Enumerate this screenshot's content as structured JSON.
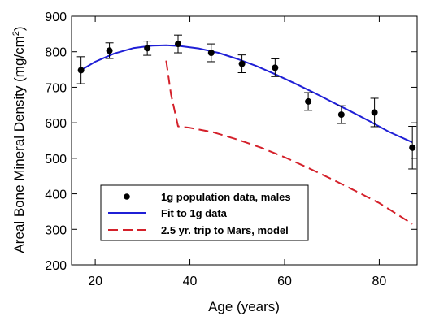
{
  "chart_data": {
    "type": "scatter",
    "xlabel": "Age (years)",
    "ylabel": "Areal Bone Mineral Density (mg/cm",
    "ylabel_superscript": "2",
    "ylabel_close": ")",
    "xlim": [
      15,
      88
    ],
    "ylim": [
      200,
      900
    ],
    "x_ticks": [
      20,
      40,
      60,
      80
    ],
    "x_tick_labels": [
      "20",
      "40",
      "60",
      "80"
    ],
    "y_ticks": [
      200,
      300,
      400,
      500,
      600,
      700,
      800,
      900
    ],
    "y_tick_labels": [
      "200",
      "300",
      "400",
      "500",
      "600",
      "700",
      "800",
      "900"
    ],
    "grid": false,
    "legend_position": "lower-left",
    "series": [
      {
        "name": "1g population data, males",
        "kind": "points_with_error_bars",
        "color": "#000000",
        "x": [
          17,
          23,
          31,
          37.5,
          44.5,
          51,
          58,
          65,
          72,
          79,
          87
        ],
        "y": [
          748,
          803,
          810,
          822,
          797,
          766,
          755,
          660,
          623,
          629,
          530
        ],
        "err": [
          38,
          22,
          20,
          25,
          25,
          25,
          25,
          25,
          25,
          40,
          60
        ]
      },
      {
        "name": "Fit to 1g data",
        "kind": "line",
        "color": "#1f1fd6",
        "x": [
          17,
          20,
          24,
          28,
          32,
          35,
          38,
          42,
          46,
          50,
          54,
          58,
          62,
          66,
          70,
          74,
          78,
          82,
          87
        ],
        "y": [
          748,
          772,
          795,
          810,
          817,
          818,
          816,
          809,
          797,
          780,
          760,
          737,
          712,
          686,
          659,
          632,
          604,
          575,
          545
        ]
      },
      {
        "name": "2.5 yr. trip to Mars, model",
        "kind": "dashed_line",
        "color": "#d4202a",
        "x": [
          35,
          36,
          37.5,
          40,
          45,
          50,
          55,
          60,
          65,
          70,
          75,
          80,
          87
        ],
        "y": [
          775,
          680,
          590,
          586,
          573,
          553,
          530,
          503,
          473,
          441,
          408,
          374,
          315
        ]
      }
    ]
  }
}
